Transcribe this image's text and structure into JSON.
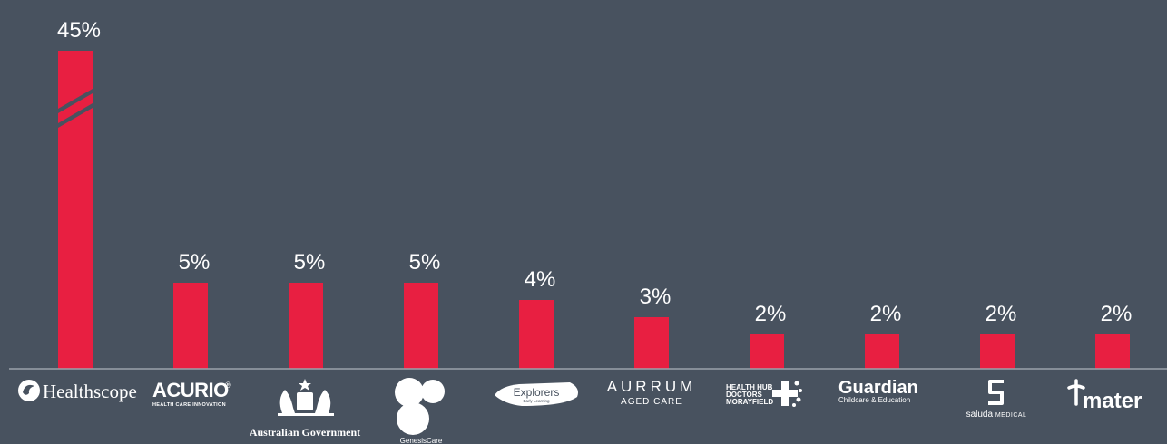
{
  "chart_data": {
    "type": "bar",
    "title": "",
    "xlabel": "",
    "ylabel": "",
    "ylim": [
      0,
      46
    ],
    "grid": false,
    "legend": "none",
    "categories": [
      "Healthscope",
      "ACURIO",
      "Australian Government",
      "GenesisCare",
      "Explorers",
      "AURRUM AGED CARE",
      "HEALTH HUB DOCTORS MORAYFIELD",
      "Guardian",
      "saluda MEDICAL",
      "mater"
    ],
    "values": [
      45,
      5,
      5,
      5,
      4,
      3,
      2,
      2,
      2,
      2
    ],
    "value_labels": [
      "45%",
      "5%",
      "5%",
      "5%",
      "4%",
      "3%",
      "2%",
      "2%",
      "2%",
      "2%"
    ],
    "axis_break_on": "Healthscope"
  },
  "logos": {
    "healthscope": {
      "name": "Healthscope"
    },
    "acurio": {
      "name": "ACURIO",
      "reg": "®",
      "tagline": "HEALTH CARE INNOVATION"
    },
    "ausgov": {
      "name": "Australian Government"
    },
    "genesis": {
      "name": "GenesisCare"
    },
    "explorers": {
      "name": "Explorers",
      "tagline": "Early Learning"
    },
    "aurrum": {
      "name": "AURRUM",
      "tagline": "AGED CARE"
    },
    "healthhub": {
      "line1": "HEALTH HUB",
      "line2": "DOCTORS",
      "line3": "MORAYFIELD"
    },
    "guardian": {
      "name": "Guardian",
      "tagline": "Childcare & Education"
    },
    "saluda": {
      "name": "saluda",
      "tagline": "MEDICAL"
    },
    "mater": {
      "name": "mater"
    }
  },
  "colors": {
    "background": "#48525f",
    "bar": "#e81f41",
    "baseline": "#9aa2ac",
    "text": "#ffffff"
  }
}
